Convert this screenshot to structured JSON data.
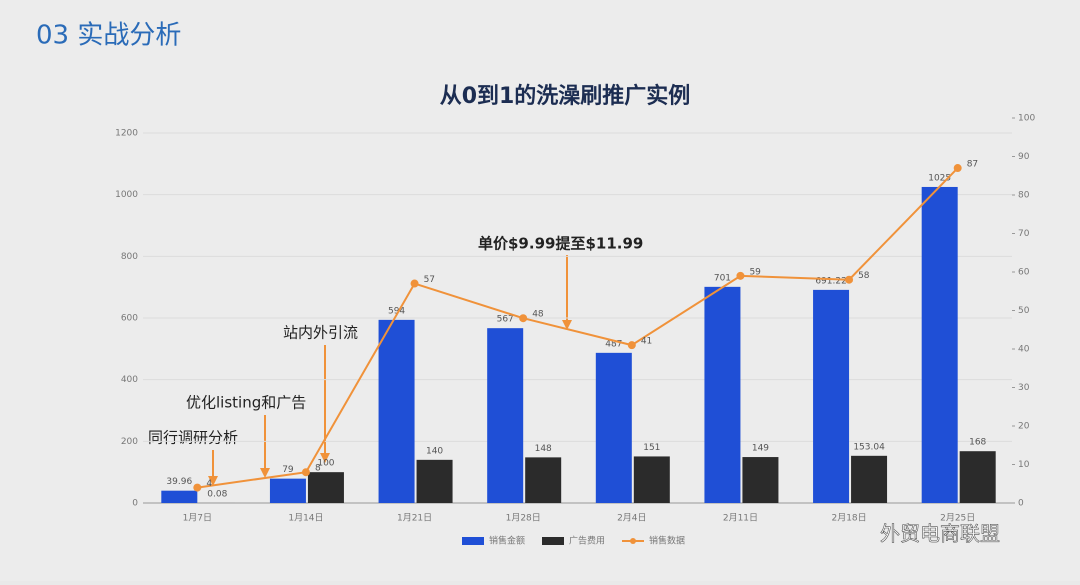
{
  "header": {
    "title": "03 实战分析"
  },
  "chart_data": {
    "type": "bar",
    "title": "从0到1的洗澡刷推广实例",
    "categories": [
      "1月7日",
      "1月14日",
      "1月21日",
      "1月28日",
      "2月4日",
      "2月11日",
      "2月18日",
      "2月25日"
    ],
    "series": [
      {
        "name": "销售金额",
        "color": "#1f4fd6",
        "values": [
          39.96,
          79,
          594,
          567,
          487,
          701,
          691.22,
          1025
        ]
      },
      {
        "name": "广告费用",
        "color": "#2b2b2b",
        "values": [
          0.08,
          100,
          140,
          148,
          151,
          149,
          153.04,
          168
        ]
      },
      {
        "name": "销售数据",
        "color": "#f0923a",
        "type": "line",
        "axis": "y2",
        "values": [
          4,
          8,
          57,
          48,
          41,
          59,
          58,
          87
        ]
      }
    ],
    "ylim": [
      0,
      1200
    ],
    "yticks": [
      0,
      200,
      400,
      600,
      800,
      1000,
      1200
    ],
    "y2lim": [
      0,
      100
    ],
    "y2ticks": [
      0,
      10,
      20,
      30,
      40,
      50,
      60,
      70,
      80,
      90,
      100
    ],
    "annotations": [
      "同行调研分析",
      "优化listing和广告",
      "站内外引流",
      "单价$9.99提至$11.99"
    ],
    "legend": "bottom"
  },
  "watermark": "外贸电商联盟"
}
